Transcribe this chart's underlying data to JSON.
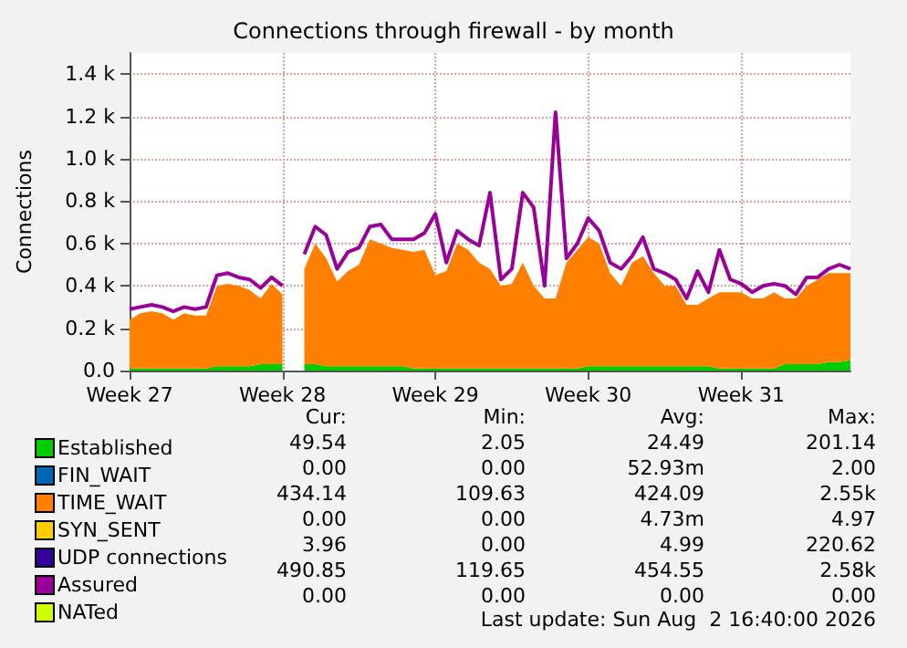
{
  "chart_data": {
    "type": "area",
    "stacked": true,
    "title": "Connections through firewall - by month",
    "ylabel": "Connections",
    "categories": [
      "Week 27",
      null,
      null,
      null,
      null,
      null,
      null,
      null,
      null,
      null,
      null,
      null,
      null,
      null,
      "Week 28",
      null,
      null,
      null,
      null,
      null,
      null,
      null,
      null,
      null,
      null,
      null,
      null,
      null,
      "Week 29",
      null,
      null,
      null,
      null,
      null,
      null,
      null,
      null,
      null,
      null,
      null,
      null,
      null,
      "Week 30",
      null,
      null,
      null,
      null,
      null,
      null,
      null,
      null,
      null,
      null,
      null,
      null,
      null,
      "Week 31",
      null,
      null,
      null,
      null,
      null,
      null,
      null,
      null,
      null,
      null
    ],
    "series": [
      {
        "name": "Established",
        "color": "#00cc00",
        "values": [
          10,
          10,
          10,
          10,
          10,
          10,
          10,
          10,
          20,
          20,
          20,
          20,
          30,
          30,
          30,
          null,
          30,
          30,
          20,
          20,
          20,
          20,
          20,
          20,
          20,
          20,
          10,
          10,
          10,
          10,
          10,
          10,
          10,
          10,
          10,
          10,
          10,
          10,
          10,
          10,
          10,
          10,
          20,
          20,
          20,
          20,
          20,
          20,
          20,
          20,
          20,
          20,
          20,
          20,
          10,
          10,
          10,
          10,
          10,
          10,
          30,
          30,
          30,
          30,
          40,
          40,
          50
        ]
      },
      {
        "name": "FIN_WAIT",
        "color": "#0066b3",
        "values": [
          null,
          null,
          null,
          null,
          null,
          null,
          null,
          null,
          null,
          null,
          null,
          null,
          null,
          null,
          null,
          null,
          null,
          null,
          null,
          null,
          null,
          null,
          null,
          null,
          null,
          null,
          null,
          null,
          null,
          null,
          null,
          null,
          null,
          null,
          null,
          null,
          null,
          null,
          null,
          null,
          null,
          null,
          null,
          null,
          null,
          null,
          null,
          null,
          null,
          null,
          null,
          null,
          null,
          null,
          null,
          null,
          null,
          null,
          null,
          null,
          null,
          null,
          null,
          null,
          null,
          null,
          null
        ]
      },
      {
        "name": "TIME_WAIT",
        "color": "#ff8000",
        "values": [
          230,
          260,
          270,
          260,
          230,
          260,
          250,
          250,
          380,
          390,
          380,
          360,
          310,
          380,
          330,
          null,
          450,
          570,
          510,
          400,
          450,
          480,
          600,
          580,
          560,
          550,
          550,
          560,
          440,
          460,
          590,
          560,
          500,
          470,
          390,
          400,
          500,
          390,
          330,
          330,
          500,
          560,
          610,
          580,
          440,
          380,
          490,
          520,
          440,
          380,
          380,
          290,
          290,
          320,
          360,
          360,
          360,
          330,
          330,
          360,
          310,
          310,
          370,
          400,
          420,
          420,
          410
        ]
      },
      {
        "name": "SYN_SENT",
        "color": "#ffcc00",
        "values": [
          null,
          null,
          null,
          null,
          null,
          null,
          null,
          null,
          null,
          null,
          null,
          null,
          null,
          null,
          null,
          null,
          null,
          null,
          null,
          null,
          null,
          null,
          null,
          null,
          null,
          null,
          null,
          null,
          null,
          null,
          null,
          null,
          null,
          null,
          null,
          null,
          null,
          null,
          null,
          null,
          null,
          null,
          null,
          null,
          null,
          null,
          null,
          null,
          null,
          null,
          null,
          null,
          null,
          null,
          null,
          null,
          null,
          null,
          null,
          null,
          null,
          null,
          null,
          null,
          null,
          null,
          null
        ]
      },
      {
        "name": "UDP connections",
        "color": "#330099",
        "values": [
          null,
          null,
          null,
          null,
          null,
          null,
          null,
          null,
          null,
          null,
          null,
          null,
          null,
          null,
          null,
          null,
          null,
          null,
          null,
          null,
          null,
          null,
          null,
          null,
          null,
          null,
          null,
          null,
          null,
          null,
          null,
          null,
          null,
          null,
          null,
          null,
          null,
          null,
          null,
          null,
          null,
          null,
          null,
          null,
          null,
          null,
          null,
          null,
          null,
          null,
          null,
          null,
          null,
          null,
          null,
          null,
          null,
          null,
          null,
          null,
          null,
          null,
          null,
          null,
          null,
          null,
          null
        ]
      },
      {
        "name": "Assured",
        "color": "#990099",
        "type": "line",
        "values": [
          290,
          300,
          310,
          300,
          280,
          300,
          290,
          300,
          450,
          460,
          440,
          430,
          390,
          440,
          400,
          null,
          550,
          680,
          640,
          480,
          560,
          580,
          680,
          690,
          620,
          620,
          620,
          650,
          740,
          510,
          660,
          620,
          590,
          840,
          430,
          480,
          840,
          770,
          400,
          1220,
          530,
          600,
          720,
          660,
          510,
          480,
          540,
          630,
          480,
          460,
          430,
          340,
          470,
          370,
          570,
          430,
          410,
          370,
          400,
          410,
          400,
          360,
          440,
          440,
          480,
          500,
          480
        ]
      },
      {
        "name": "NATed",
        "color": "#ccff00",
        "values": [
          null,
          null,
          null,
          null,
          null,
          null,
          null,
          null,
          null,
          null,
          null,
          null,
          null,
          null,
          null,
          null,
          null,
          null,
          null,
          null,
          null,
          null,
          null,
          null,
          null,
          null,
          null,
          null,
          null,
          null,
          null,
          null,
          null,
          null,
          null,
          null,
          null,
          null,
          null,
          null,
          null,
          null,
          null,
          null,
          null,
          null,
          null,
          null,
          null,
          null,
          null,
          null,
          null,
          null,
          null,
          null,
          null,
          null,
          null,
          null,
          null,
          null,
          null,
          null,
          null,
          null,
          null
        ]
      }
    ],
    "ylim": [
      0,
      1500
    ],
    "yticks": [
      {
        "value": 0,
        "label": "0.0"
      },
      {
        "value": 200,
        "label": "0.2 k"
      },
      {
        "value": 400,
        "label": "0.4 k"
      },
      {
        "value": 600,
        "label": "0.6 k"
      },
      {
        "value": 800,
        "label": "0.8 k"
      },
      {
        "value": 1000,
        "label": "1.0 k"
      },
      {
        "value": 1200,
        "label": "1.2 k"
      },
      {
        "value": 1400,
        "label": "1.4 k"
      }
    ],
    "grid": true,
    "legend": "bottom left",
    "marker": "none",
    "annotations": [
      "Cur:",
      "Min:",
      "Avg:",
      "Max:",
      "49.54",
      "2.05",
      "24.49",
      "201.14",
      "0.00",
      "0.00",
      "52.93m",
      "2.00",
      "434.14",
      "109.63",
      "424.09",
      "2.55k",
      "0.00",
      "0.00",
      "4.73m",
      "4.97",
      "3.96",
      "0.00",
      "4.99",
      "220.62",
      "490.85",
      "119.65",
      "454.55",
      "2.58k",
      "0.00",
      "0.00",
      "0.00",
      "0.00",
      "Last update: Sun Aug  2 16:40:00 2026"
    ]
  }
}
